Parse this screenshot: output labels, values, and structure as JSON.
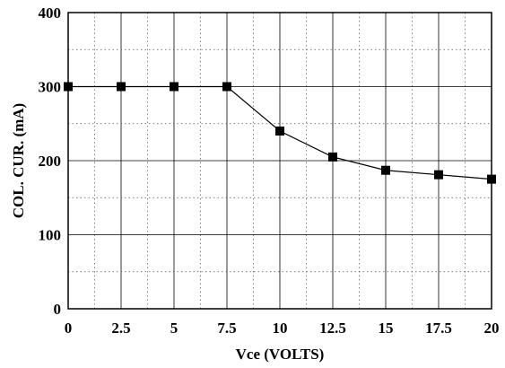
{
  "chart_data": {
    "type": "line",
    "title": "",
    "xlabel": "Vce (VOLTS)",
    "ylabel": "COL. CUR. (mA)",
    "xlim": [
      0,
      20
    ],
    "ylim": [
      0,
      400
    ],
    "x_ticks": [
      "0",
      "2.5",
      "5",
      "7.5",
      "10",
      "12.5",
      "15",
      "17.5",
      "20"
    ],
    "y_ticks": [
      "0",
      "100",
      "200",
      "300",
      "400"
    ],
    "grid": true,
    "marker": "square",
    "series": [
      {
        "x": [
          0,
          2.5,
          5,
          7.5,
          10,
          12.5,
          15,
          17.5,
          20
        ],
        "values": [
          300,
          300,
          300,
          300,
          240,
          205,
          187,
          181,
          175
        ],
        "color": "#000000"
      }
    ]
  }
}
